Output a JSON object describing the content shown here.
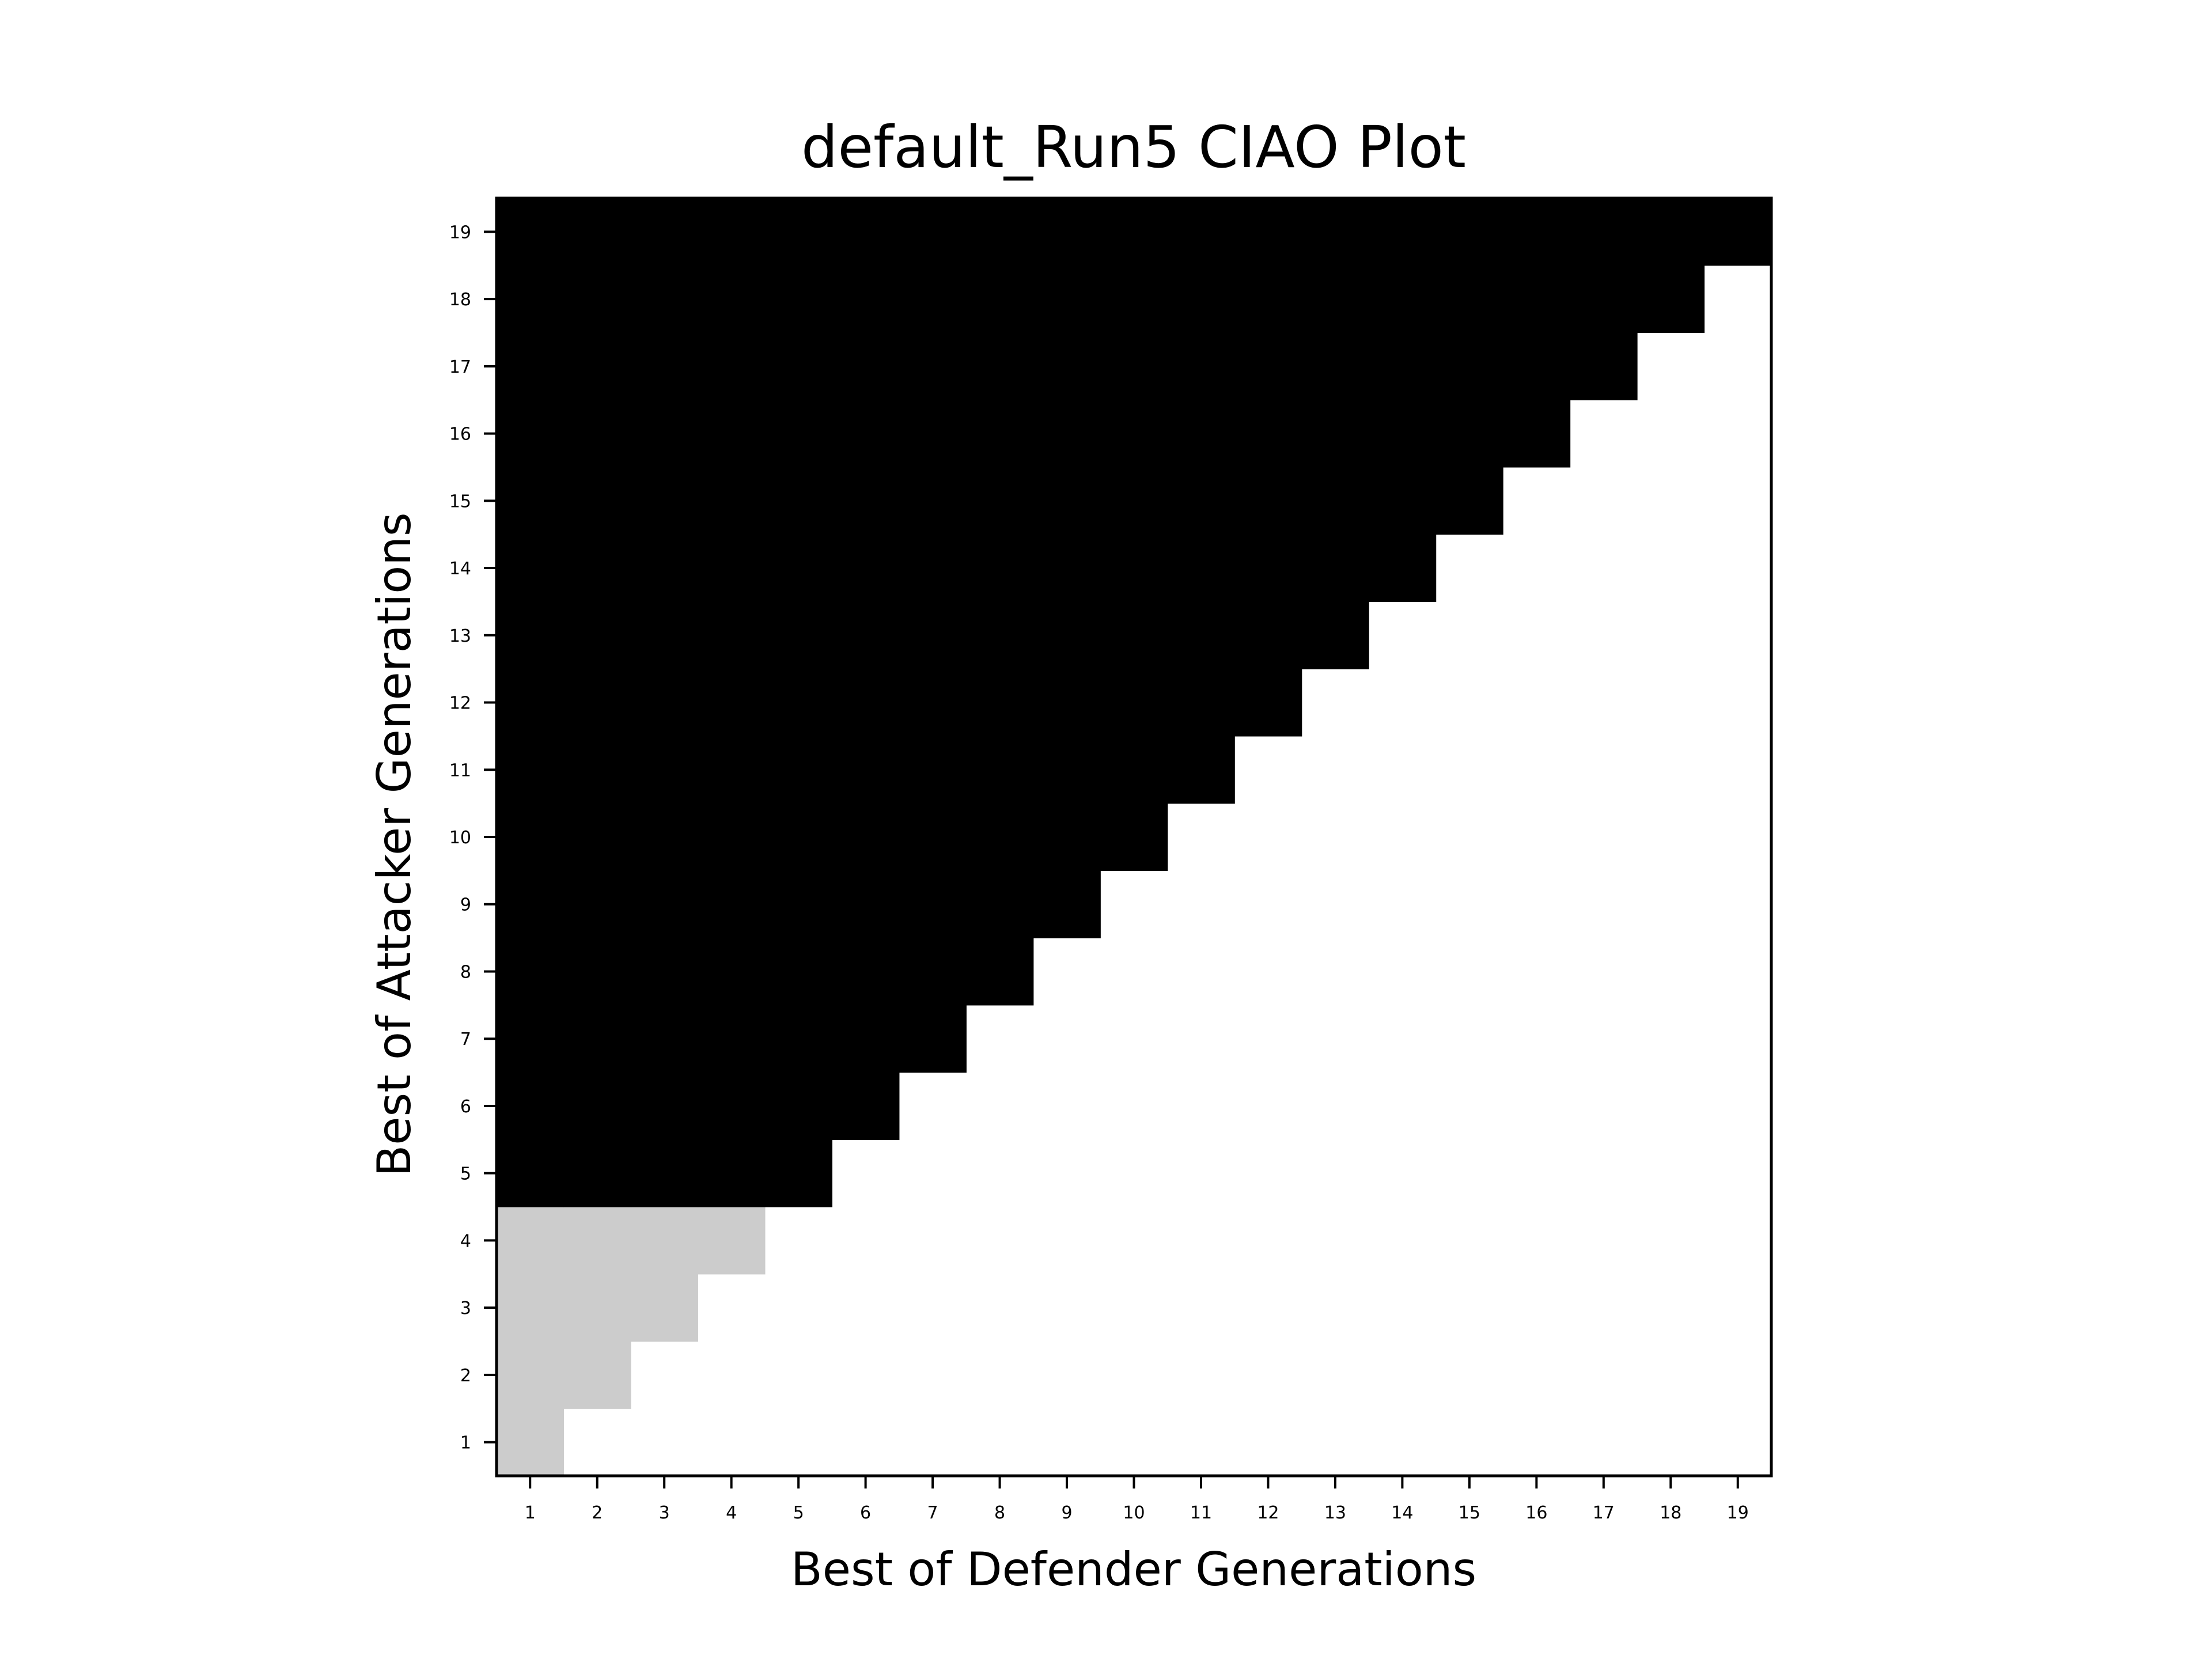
{
  "chart_data": {
    "type": "heatmap",
    "title": "default_Run5 CIAO Plot",
    "xlabel": "Best of Defender Generations",
    "ylabel": "Best of Attacker Generations",
    "x": [
      1,
      2,
      3,
      4,
      5,
      6,
      7,
      8,
      9,
      10,
      11,
      12,
      13,
      14,
      15,
      16,
      17,
      18,
      19
    ],
    "y": [
      1,
      2,
      3,
      4,
      5,
      6,
      7,
      8,
      9,
      10,
      11,
      12,
      13,
      14,
      15,
      16,
      17,
      18,
      19
    ],
    "xlim": [
      0.5,
      19.5
    ],
    "ylim": [
      0.5,
      19.5
    ],
    "grid": false,
    "colormap": "gray_r",
    "colors": {
      "high": "#000000",
      "mid": "#cccccc",
      "empty": "#ffffff"
    },
    "cell_rule": "cells with attacker generation >= defender generation are filled; value 1.0 (black) for attacker generation 5-19, value 0.2 (light gray) for attacker generation 1-4; cells below the diagonal are empty",
    "values_by_attacker_generation": {
      "1": 0.2,
      "2": 0.2,
      "3": 0.2,
      "4": 0.2,
      "5": 1.0,
      "6": 1.0,
      "7": 1.0,
      "8": 1.0,
      "9": 1.0,
      "10": 1.0,
      "11": 1.0,
      "12": 1.0,
      "13": 1.0,
      "14": 1.0,
      "15": 1.0,
      "16": 1.0,
      "17": 1.0,
      "18": 1.0,
      "19": 1.0
    }
  }
}
